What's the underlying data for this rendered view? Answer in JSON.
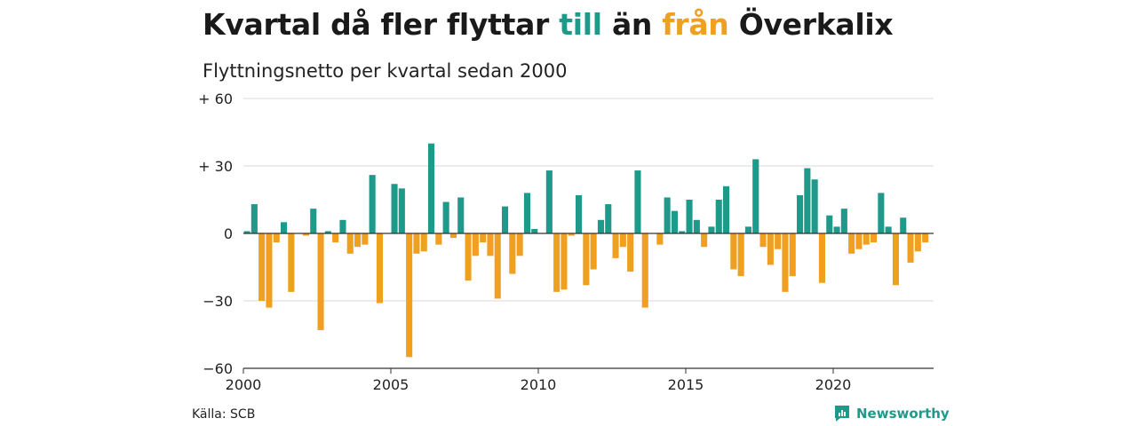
{
  "title": {
    "part1": "Kvartal då fler flyttar ",
    "till": "till",
    "part2": " än ",
    "fran": "från",
    "part3": " Överkalix"
  },
  "subtitle": "Flyttningsnetto per kvartal sedan 2000",
  "source": "Källa: SCB",
  "brand": "Newsworthy",
  "colors": {
    "positive": "#1e9a8a",
    "negative": "#f0a020",
    "grid": "#d9d9d9",
    "axis": "#333333"
  },
  "chart_data": {
    "type": "bar",
    "ylim": [
      -60,
      60
    ],
    "yticks": [
      60,
      30,
      0,
      -30,
      -60
    ],
    "ytick_labels": [
      "+ 60",
      "+ 30",
      "0",
      "−30",
      "−60"
    ],
    "xticks": [
      2000,
      2005,
      2010,
      2015,
      2020
    ],
    "xtick_labels": [
      "2000",
      "2005",
      "2010",
      "2015",
      "2020"
    ],
    "start_year": 2000,
    "values": [
      1,
      13,
      -30,
      -33,
      -4,
      5,
      -26,
      0,
      -1,
      11,
      -43,
      1,
      -4,
      6,
      -9,
      -6,
      -5,
      26,
      -31,
      0,
      22,
      20,
      -55,
      -9,
      -8,
      40,
      -5,
      14,
      -2,
      16,
      -21,
      -10,
      -4,
      -10,
      -29,
      12,
      -18,
      -10,
      18,
      2,
      0,
      28,
      -26,
      -25,
      -1,
      17,
      -23,
      -16,
      6,
      13,
      -11,
      -6,
      -17,
      28,
      -33,
      0,
      -5,
      16,
      10,
      1,
      15,
      6,
      -6,
      3,
      15,
      21,
      -16,
      -19,
      3,
      33,
      -6,
      -14,
      -7,
      -26,
      -19,
      17,
      29,
      24,
      -22,
      8,
      3,
      11,
      -9,
      -7,
      -5,
      -4,
      18,
      3,
      -23,
      7,
      -13,
      -8,
      -4
    ]
  }
}
